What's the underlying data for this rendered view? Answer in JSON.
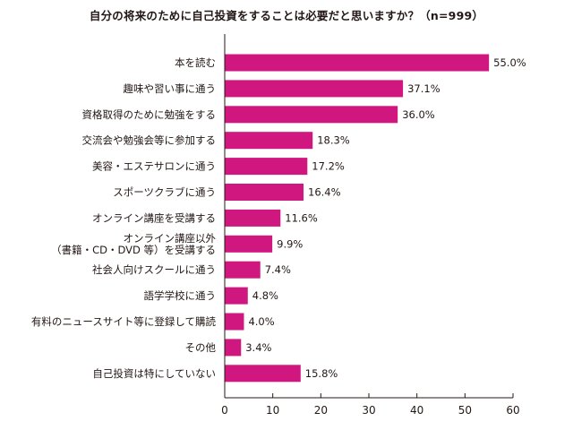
{
  "chart_data": {
    "type": "bar",
    "orientation": "horizontal",
    "title": "自分の将来のために自己投資をすることは必要だと思いますか？（n=999）",
    "categories": [
      "本を読む",
      "趣味や習い事に通う",
      "資格取得のために勉強をする",
      "交流会や勉強会等に参加する",
      "美容・エステサロンに通う",
      "スポーツクラブに通う",
      "オンライン講座を受講する",
      "オンライン講座以外\n（書籍・CD・DVD 等）を受講する",
      "社会人向けスクールに通う",
      "語学学校に通う",
      "有料のニュースサイト等に登録して購読",
      "その他",
      "自己投資は特にしていない"
    ],
    "values": [
      55.0,
      37.1,
      36.0,
      18.3,
      17.2,
      16.4,
      11.6,
      9.9,
      7.4,
      4.8,
      4.0,
      3.4,
      15.8
    ],
    "value_labels": [
      "55.0%",
      "37.1%",
      "36.0%",
      "18.3%",
      "17.2%",
      "16.4%",
      "11.6%",
      "9.9%",
      "7.4%",
      "4.8%",
      "4.0%",
      "3.4%",
      "15.8%"
    ],
    "xlim": [
      0,
      60
    ],
    "xticks": [
      0,
      10,
      20,
      30,
      40,
      50,
      60
    ],
    "xlabel": "",
    "ylabel": "",
    "grid": false,
    "bar_color": "#d0167f",
    "text_color": "#231815"
  }
}
